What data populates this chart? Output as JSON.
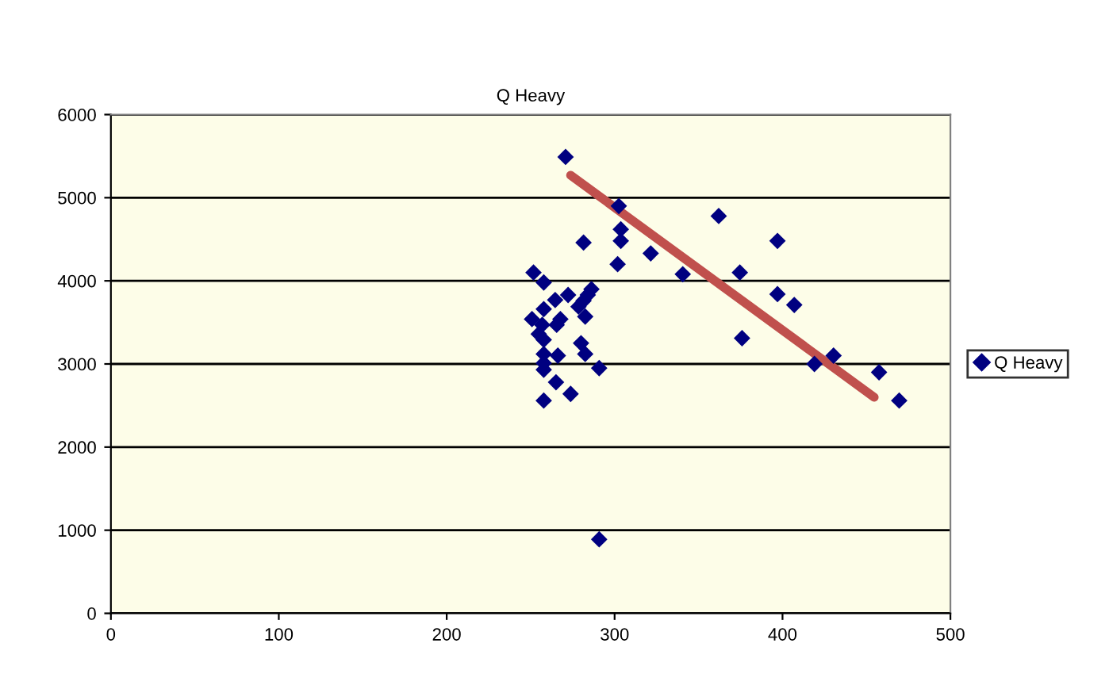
{
  "chart_data": {
    "type": "scatter",
    "title": "Q Heavy",
    "xlim": [
      0,
      500
    ],
    "ylim": [
      0,
      6000
    ],
    "xticks": [
      0,
      100,
      200,
      300,
      400,
      500
    ],
    "yticks": [
      0,
      1000,
      2000,
      3000,
      4000,
      5000,
      6000
    ],
    "grid": "y",
    "legend": "right",
    "series": [
      {
        "name": "Q Heavy",
        "color": "#000080",
        "marker": "diamond",
        "x": [
          270.8,
          302.5,
          303.7,
          303.7,
          281.5,
          301.8,
          321.5,
          340.6,
          251.7,
          257.8,
          272.3,
          264.6,
          286.2,
          284,
          281.5,
          278.5,
          257.8,
          282.5,
          267.7,
          265.5,
          250.8,
          256.9,
          254.8,
          257.8,
          280,
          282.5,
          266.2,
          257.8,
          257.8,
          257.8,
          290.8,
          265.1,
          273.8,
          257.8,
          290.8,
          362,
          397,
          374.6,
          397,
          407,
          375.9,
          430.4,
          419,
          457.5,
          469.5
        ],
        "values": [
          5490,
          4900,
          4620,
          4480,
          4460,
          4200,
          4330,
          4080,
          4100,
          3980,
          3830,
          3770,
          3900,
          3830,
          3760,
          3690,
          3660,
          3570,
          3540,
          3470,
          3540,
          3470,
          3360,
          3290,
          3250,
          3120,
          3100,
          3120,
          3010,
          2930,
          2950,
          2780,
          2640,
          2560,
          890,
          4780,
          4480,
          4100,
          3840,
          3710,
          3310,
          3100,
          3000,
          2900,
          2560
        ]
      },
      {
        "type": "line",
        "color": "#c0504d",
        "marker": "none",
        "x": [
          273.8,
          454.6
        ],
        "values": [
          5270,
          2600
        ]
      }
    ]
  }
}
